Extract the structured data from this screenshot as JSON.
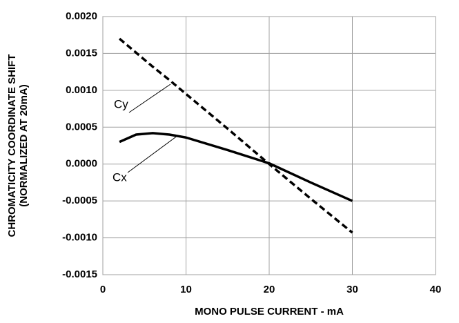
{
  "chart_data": {
    "type": "line",
    "xlabel": "MONO PULSE CURRENT - mA",
    "ylabel": [
      "CHROMATICITY COORDINATE SHIFT",
      "(NORMALIZED AT 20mA)"
    ],
    "x": [
      2,
      4,
      6,
      8,
      10,
      15,
      20,
      25,
      30
    ],
    "series": [
      {
        "name": "Cy",
        "color": "#000000",
        "dash": true,
        "values": [
          0.0017,
          0.00151,
          0.00132,
          0.00114,
          0.00095,
          0.00048,
          0,
          -0.00047,
          -0.00093
        ]
      },
      {
        "name": "Cx",
        "color": "#000000",
        "dash": false,
        "values": [
          0.0003,
          0.0004,
          0.00042,
          0.0004,
          0.00036,
          0.00019,
          1e-05,
          -0.00025,
          -0.0005
        ]
      }
    ],
    "xlim": [
      0,
      40
    ],
    "xticks": [
      0,
      10,
      20,
      30,
      40
    ],
    "ylim": [
      -0.0015,
      0.002
    ],
    "yticks": [
      {
        "value": 0.002,
        "label": "0.0020"
      },
      {
        "value": 0.0015,
        "label": "0.0015"
      },
      {
        "value": 0.001,
        "label": "0.0010"
      },
      {
        "value": 0.0005,
        "label": "0.0005"
      },
      {
        "value": 0,
        "label": "0.0000"
      },
      {
        "value": -0.0005,
        "label": "-0.0005"
      },
      {
        "value": -0.001,
        "label": "-0.0010"
      },
      {
        "value": -0.0015,
        "label": "-0.0015"
      }
    ],
    "grid": true
  }
}
